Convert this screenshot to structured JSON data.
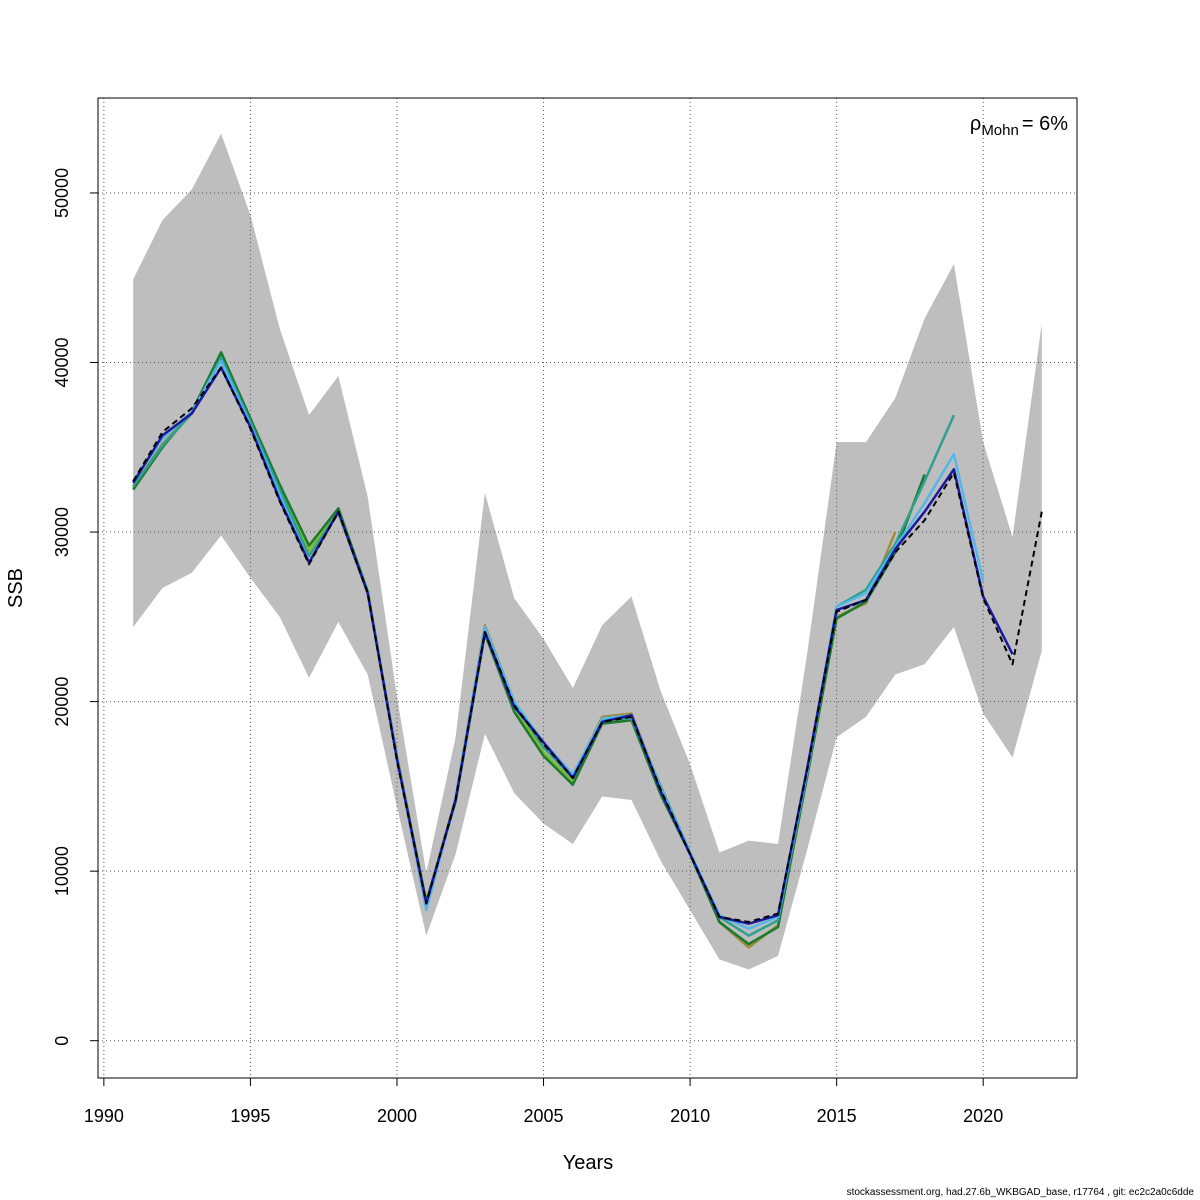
{
  "chart_data": {
    "type": "line",
    "title": "",
    "xlabel": "Years",
    "ylabel": "SSB",
    "xlim": [
      1990,
      2023
    ],
    "ylim": [
      0,
      55000
    ],
    "x_ticks": [
      1990,
      1995,
      2000,
      2005,
      2010,
      2015,
      2020
    ],
    "y_ticks": [
      0,
      10000,
      20000,
      30000,
      40000,
      50000
    ],
    "grid": true,
    "annotation": {
      "symbol": "ρ",
      "subscript": "Mohn",
      "value": "= 6%"
    },
    "band": {
      "color": "#bebebe",
      "x": [
        1991,
        1992,
        1993,
        1994,
        1995,
        1996,
        1997,
        1998,
        1999,
        2000,
        2001,
        2002,
        2003,
        2004,
        2005,
        2006,
        2007,
        2008,
        2009,
        2010,
        2011,
        2012,
        2013,
        2014,
        2015,
        2016,
        2017,
        2018,
        2019,
        2020,
        2021,
        2022
      ],
      "upper": [
        44900,
        48400,
        50200,
        53500,
        48700,
        42000,
        36900,
        39200,
        32100,
        20300,
        9900,
        17900,
        32300,
        26100,
        23700,
        20800,
        24500,
        26200,
        20600,
        16300,
        11100,
        11800,
        11600,
        22900,
        35300,
        35300,
        37900,
        42600,
        45800,
        35300,
        29700,
        42300
      ],
      "lower": [
        24400,
        26700,
        27600,
        29800,
        27300,
        25000,
        21400,
        24700,
        21600,
        13800,
        6200,
        11000,
        18100,
        14600,
        12800,
        11600,
        14400,
        14200,
        10600,
        7700,
        4800,
        4200,
        5000,
        11300,
        17900,
        19100,
        21600,
        22200,
        24400,
        19300,
        16700,
        23000
      ]
    },
    "series": [
      {
        "color": "#000000",
        "dashed": true,
        "x": [
          1991,
          1992,
          1993,
          1994,
          1995,
          1996,
          1997,
          1998,
          1999,
          2000,
          2001,
          2002,
          2003,
          2004,
          2005,
          2006,
          2007,
          2008,
          2009,
          2010,
          2011,
          2012,
          2013,
          2014,
          2015,
          2016,
          2017,
          2018,
          2019,
          2020,
          2021,
          2022
        ],
        "values": [
          33000,
          35900,
          37300,
          39700,
          36100,
          31800,
          28100,
          31200,
          26400,
          16500,
          8100,
          14200,
          24100,
          19800,
          17500,
          15500,
          18800,
          19100,
          14800,
          11000,
          7300,
          7000,
          7500,
          16000,
          25300,
          26000,
          28800,
          30700,
          33500,
          26100,
          22200,
          31200
        ]
      },
      {
        "color": "#1a1aa0",
        "x": [
          1991,
          1992,
          1993,
          1994,
          1995,
          1996,
          1997,
          1998,
          1999,
          2000,
          2001,
          2002,
          2003,
          2004,
          2005,
          2006,
          2007,
          2008,
          2009,
          2010,
          2011,
          2012,
          2013,
          2014,
          2015,
          2016,
          2017,
          2018,
          2019,
          2020,
          2021
        ],
        "values": [
          32900,
          35700,
          37000,
          39700,
          36200,
          31900,
          28200,
          31200,
          26400,
          16600,
          8100,
          14200,
          24100,
          19700,
          17600,
          15500,
          18800,
          19200,
          14700,
          11000,
          7300,
          6900,
          7400,
          16100,
          25400,
          26000,
          29000,
          31200,
          33700,
          26200,
          22800
        ]
      },
      {
        "color": "#55b7e8",
        "x": [
          1991,
          1992,
          1993,
          1994,
          1995,
          1996,
          1997,
          1998,
          1999,
          2000,
          2001,
          2002,
          2003,
          2004,
          2005,
          2006,
          2007,
          2008,
          2009,
          2010,
          2011,
          2012,
          2013,
          2014,
          2015,
          2016,
          2017,
          2018,
          2019,
          2020
        ],
        "values": [
          33000,
          35500,
          37100,
          40100,
          36300,
          32200,
          28200,
          31200,
          26400,
          16700,
          7700,
          14300,
          24400,
          20000,
          17600,
          15700,
          19000,
          19200,
          14900,
          11100,
          7400,
          6600,
          7300,
          15900,
          25600,
          26400,
          29100,
          31700,
          34600,
          27100
        ]
      },
      {
        "color": "#2f9f8f",
        "x": [
          1991,
          1992,
          1993,
          1994,
          1995,
          1996,
          1997,
          1998,
          1999,
          2000,
          2001,
          2002,
          2003,
          2004,
          2005,
          2006,
          2007,
          2008,
          2009,
          2010,
          2011,
          2012,
          2013,
          2014,
          2015,
          2016,
          2017,
          2018,
          2019
        ],
        "values": [
          32700,
          35100,
          37000,
          40300,
          36500,
          32500,
          28600,
          31200,
          26400,
          16700,
          8000,
          14200,
          24300,
          19900,
          17300,
          15500,
          19000,
          19000,
          15000,
          11100,
          7300,
          6200,
          7100,
          15800,
          25600,
          26600,
          29300,
          33000,
          36900
        ]
      },
      {
        "color": "#1b7a2f",
        "x": [
          1991,
          1992,
          1993,
          1994,
          1995,
          1996,
          1997,
          1998,
          1999,
          2000,
          2001,
          2002,
          2003,
          2004,
          2005,
          2006,
          2007,
          2008,
          2009,
          2010,
          2011,
          2012,
          2013,
          2014,
          2015,
          2016,
          2017,
          2018
        ],
        "values": [
          32500,
          35000,
          37100,
          40600,
          36700,
          32800,
          29200,
          31400,
          26500,
          16600,
          8200,
          14100,
          24000,
          19400,
          16800,
          15100,
          18700,
          18900,
          14500,
          11000,
          7000,
          5700,
          6700,
          15600,
          24900,
          25900,
          28800,
          33400
        ]
      },
      {
        "color": "#a08c3a",
        "x": [
          1991,
          1992,
          1993,
          1994,
          1995,
          1996,
          1997,
          1998,
          1999,
          2000,
          2001,
          2002,
          2003,
          2004,
          2005,
          2006,
          2007,
          2008,
          2009,
          2010,
          2011,
          2012,
          2013,
          2014,
          2015,
          2016,
          2017
        ],
        "values": [
          32700,
          35200,
          37000,
          40200,
          36400,
          32300,
          28600,
          31100,
          26400,
          16800,
          8100,
          14300,
          24500,
          20000,
          17300,
          15600,
          19100,
          19300,
          14900,
          11100,
          7000,
          5500,
          6800,
          15700,
          25000,
          25800,
          30000
        ]
      },
      {
        "color": "#7dbb2e",
        "x": [
          1991,
          1992,
          1993,
          1994,
          1995,
          1996,
          1997,
          1998,
          1999,
          2000,
          2001,
          2002,
          2003,
          2004,
          2005,
          2006,
          2007,
          2008,
          2009,
          2010,
          2011,
          2012,
          2013,
          2014,
          2015,
          2016
        ],
        "values": [
          32600,
          35100,
          37000,
          40400,
          36600,
          32500,
          28900,
          31300,
          26500,
          16700,
          8200,
          14200,
          24200,
          19700,
          17000,
          15300,
          18900,
          19000,
          14700,
          11000,
          7000,
          5600,
          6800,
          15700,
          24900,
          25900
        ]
      }
    ]
  },
  "footer": "stockassessment.org, had.27.6b_WKBGAD_base, r17764 , git: ec2c2a0c6dde"
}
